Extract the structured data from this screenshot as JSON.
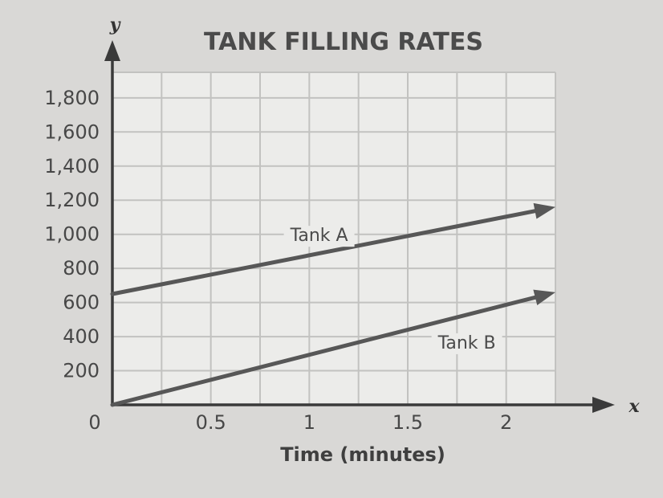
{
  "chart_data": {
    "type": "line",
    "title": "TANK FILLING RATES",
    "xlabel": "Time (minutes)",
    "ylabel": "y",
    "x_axis_var": "x",
    "xlim": [
      0,
      2.25
    ],
    "ylim": [
      0,
      1950
    ],
    "x_ticks": [
      {
        "value": 0,
        "label": "0"
      },
      {
        "value": 0.5,
        "label": "0.5"
      },
      {
        "value": 1,
        "label": "1"
      },
      {
        "value": 1.5,
        "label": "1.5"
      },
      {
        "value": 2,
        "label": "2"
      }
    ],
    "y_ticks": [
      {
        "value": 200,
        "label": "200"
      },
      {
        "value": 400,
        "label": "400"
      },
      {
        "value": 600,
        "label": "600"
      },
      {
        "value": 800,
        "label": "800"
      },
      {
        "value": 1000,
        "label": "1,000"
      },
      {
        "value": 1200,
        "label": "1,200"
      },
      {
        "value": 1400,
        "label": "1,400"
      },
      {
        "value": 1600,
        "label": "1,600"
      },
      {
        "value": 1800,
        "label": "1,800"
      }
    ],
    "grid": true,
    "grid_x_step": 0.25,
    "grid_y_step": 200,
    "series": [
      {
        "name": "Tank A",
        "x": [
          0,
          2.25
        ],
        "y": [
          650,
          1160
        ],
        "arrow": true,
        "label_at": [
          1.05,
          960
        ]
      },
      {
        "name": "Tank B",
        "x": [
          0,
          2.25
        ],
        "y": [
          0,
          660
        ],
        "arrow": true,
        "label_at": [
          1.8,
          330
        ]
      }
    ],
    "colors": {
      "line": "#575757",
      "grid": "#c2c2c0",
      "axis": "#3a3a3a",
      "plot_bg": "#ececea"
    }
  }
}
